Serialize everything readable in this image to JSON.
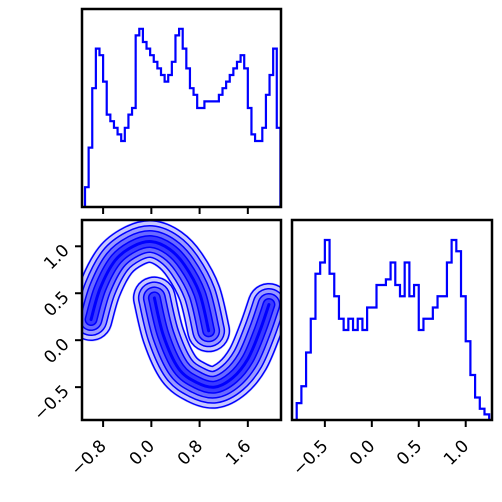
{
  "chart_data": [
    {
      "panel": "marginal-x",
      "type": "histogram",
      "style": "step",
      "color": "#0000ff",
      "xlim": [
        -1.15,
        2.15
      ],
      "x_tick_labels": [],
      "bin_edges": [
        -1.1,
        -1.04,
        -0.98,
        -0.92,
        -0.86,
        -0.8,
        -0.74,
        -0.68,
        -0.62,
        -0.56,
        -0.5,
        -0.44,
        -0.38,
        -0.32,
        -0.26,
        -0.2,
        -0.14,
        -0.08,
        -0.02,
        0.04,
        0.1,
        0.16,
        0.22,
        0.28,
        0.34,
        0.4,
        0.46,
        0.52,
        0.58,
        0.64,
        0.7,
        0.76,
        0.82,
        0.88,
        0.94,
        1.0,
        1.06,
        1.12,
        1.18,
        1.24,
        1.3,
        1.36,
        1.42,
        1.48,
        1.54,
        1.6,
        1.66,
        1.72,
        1.78,
        1.84,
        1.9,
        1.96,
        2.02,
        2.08,
        2.14
      ],
      "counts": [
        3,
        9,
        18,
        24,
        23,
        19,
        14,
        13,
        12,
        11,
        10,
        12,
        14,
        15,
        26,
        27,
        25,
        24,
        23,
        22,
        21,
        20,
        19,
        20,
        22,
        26,
        27,
        24,
        21,
        18,
        17,
        15,
        15,
        16,
        16,
        16,
        16,
        17,
        18,
        19,
        20,
        21,
        22,
        23,
        21,
        15,
        11,
        10,
        10,
        12,
        17,
        20,
        24,
        12
      ]
    },
    {
      "panel": "joint",
      "type": "contour",
      "style": "2d histogram with filled contour levels and faint scatter points",
      "color": "#0000ff",
      "xlim": [
        -1.15,
        2.15
      ],
      "ylim": [
        -0.85,
        1.28
      ],
      "x_tick_labels": [
        "−0.8",
        "0.0",
        "0.8",
        "1.6"
      ],
      "y_tick_labels": [
        "−0.5",
        "0.0",
        "0.5",
        "1.0"
      ],
      "upper_moon": [
        {
          "x": -1.0,
          "y": 0.22
        },
        {
          "x": -0.85,
          "y": 0.55
        },
        {
          "x": -0.6,
          "y": 0.85
        },
        {
          "x": -0.3,
          "y": 1.0
        },
        {
          "x": 0.0,
          "y": 1.05
        },
        {
          "x": 0.3,
          "y": 0.97
        },
        {
          "x": 0.55,
          "y": 0.8
        },
        {
          "x": 0.8,
          "y": 0.5
        },
        {
          "x": 0.95,
          "y": 0.1
        }
      ],
      "lower_moon": [
        {
          "x": 0.05,
          "y": 0.45
        },
        {
          "x": 0.2,
          "y": 0.05
        },
        {
          "x": 0.45,
          "y": -0.3
        },
        {
          "x": 0.75,
          "y": -0.45
        },
        {
          "x": 1.05,
          "y": -0.5
        },
        {
          "x": 1.35,
          "y": -0.4
        },
        {
          "x": 1.6,
          "y": -0.2
        },
        {
          "x": 1.8,
          "y": 0.1
        },
        {
          "x": 1.95,
          "y": 0.38
        }
      ]
    },
    {
      "panel": "marginal-y",
      "type": "histogram",
      "style": "step",
      "color": "#0000ff",
      "xlim": [
        -0.85,
        1.28
      ],
      "x_tick_labels": [
        "−0.5",
        "0.0",
        "0.5",
        "1.0"
      ],
      "bin_edges": [
        -0.8,
        -0.75,
        -0.7,
        -0.65,
        -0.6,
        -0.55,
        -0.5,
        -0.45,
        -0.4,
        -0.35,
        -0.3,
        -0.25,
        -0.2,
        -0.15,
        -0.1,
        -0.05,
        0.0,
        0.05,
        0.1,
        0.15,
        0.2,
        0.25,
        0.3,
        0.35,
        0.4,
        0.45,
        0.5,
        0.55,
        0.6,
        0.65,
        0.7,
        0.75,
        0.8,
        0.85,
        0.9,
        0.95,
        1.0,
        1.05,
        1.1,
        1.15,
        1.2,
        1.25
      ],
      "counts": [
        3,
        6,
        12,
        18,
        26,
        28,
        32,
        26,
        22,
        18,
        16,
        18,
        16,
        18,
        16,
        20,
        20,
        24,
        24,
        25,
        28,
        24,
        22,
        28,
        22,
        24,
        16,
        18,
        18,
        20,
        22,
        22,
        28,
        32,
        30,
        22,
        14,
        8,
        4,
        2,
        1
      ]
    }
  ]
}
